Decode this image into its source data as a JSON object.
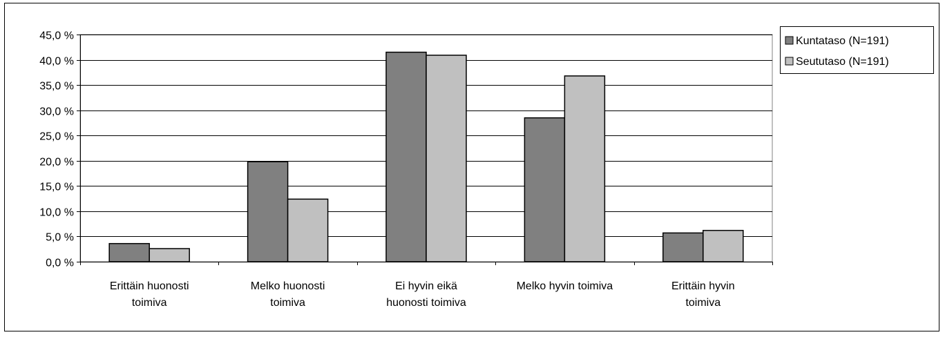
{
  "chart_data": {
    "type": "bar",
    "title": "",
    "xlabel": "",
    "ylabel": "",
    "categories": [
      [
        "Erittäin huonosti",
        "toimiva"
      ],
      [
        "Melko huonosti",
        "toimiva"
      ],
      [
        "Ei hyvin eikä",
        "huonosti toimiva"
      ],
      [
        "Melko hyvin toimiva"
      ],
      [
        "Erittäin hyvin",
        "toimiva"
      ]
    ],
    "series": [
      {
        "name": "Kuntataso (N=191)",
        "color": "#808080",
        "values": [
          3.6,
          19.8,
          41.5,
          28.5,
          5.7
        ]
      },
      {
        "name": "Seututaso (N=191)",
        "color": "#c0c0c0",
        "values": [
          2.6,
          12.4,
          40.9,
          36.8,
          6.2
        ]
      }
    ],
    "ylim": [
      0,
      45
    ],
    "yticks": [
      "0,0 %",
      "5,0 %",
      "10,0 %",
      "15,0 %",
      "20,0 %",
      "25,0 %",
      "30,0 %",
      "35,0 %",
      "40,0 %",
      "45,0 %"
    ],
    "grid": true,
    "legend": "right"
  }
}
